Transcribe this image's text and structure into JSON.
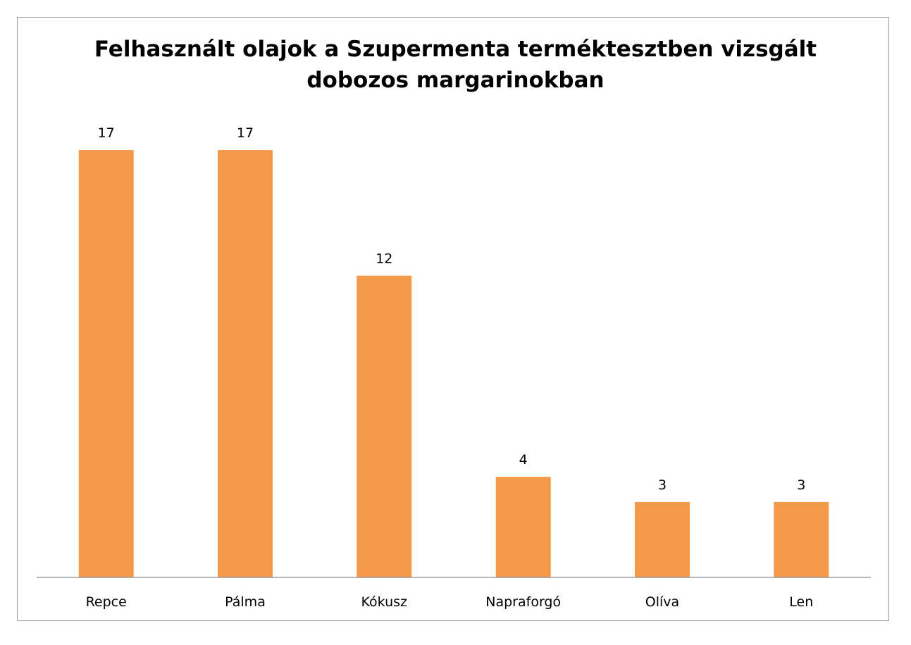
{
  "chart_data": {
    "type": "bar",
    "title": "Felhasznált olajok a Szupermenta terméktesztben vizsgált\ndobozos margarinokban",
    "categories": [
      "Repce",
      "Pálma",
      "Kókusz",
      "Napraforgó",
      "Olíva",
      "Len"
    ],
    "values": [
      17,
      17,
      12,
      4,
      3,
      3
    ],
    "xlabel": "",
    "ylabel": "",
    "ylim": [
      0,
      17.9
    ],
    "grid": false,
    "legend": "none",
    "data_labels": true,
    "bar_color": "#f4994a"
  }
}
